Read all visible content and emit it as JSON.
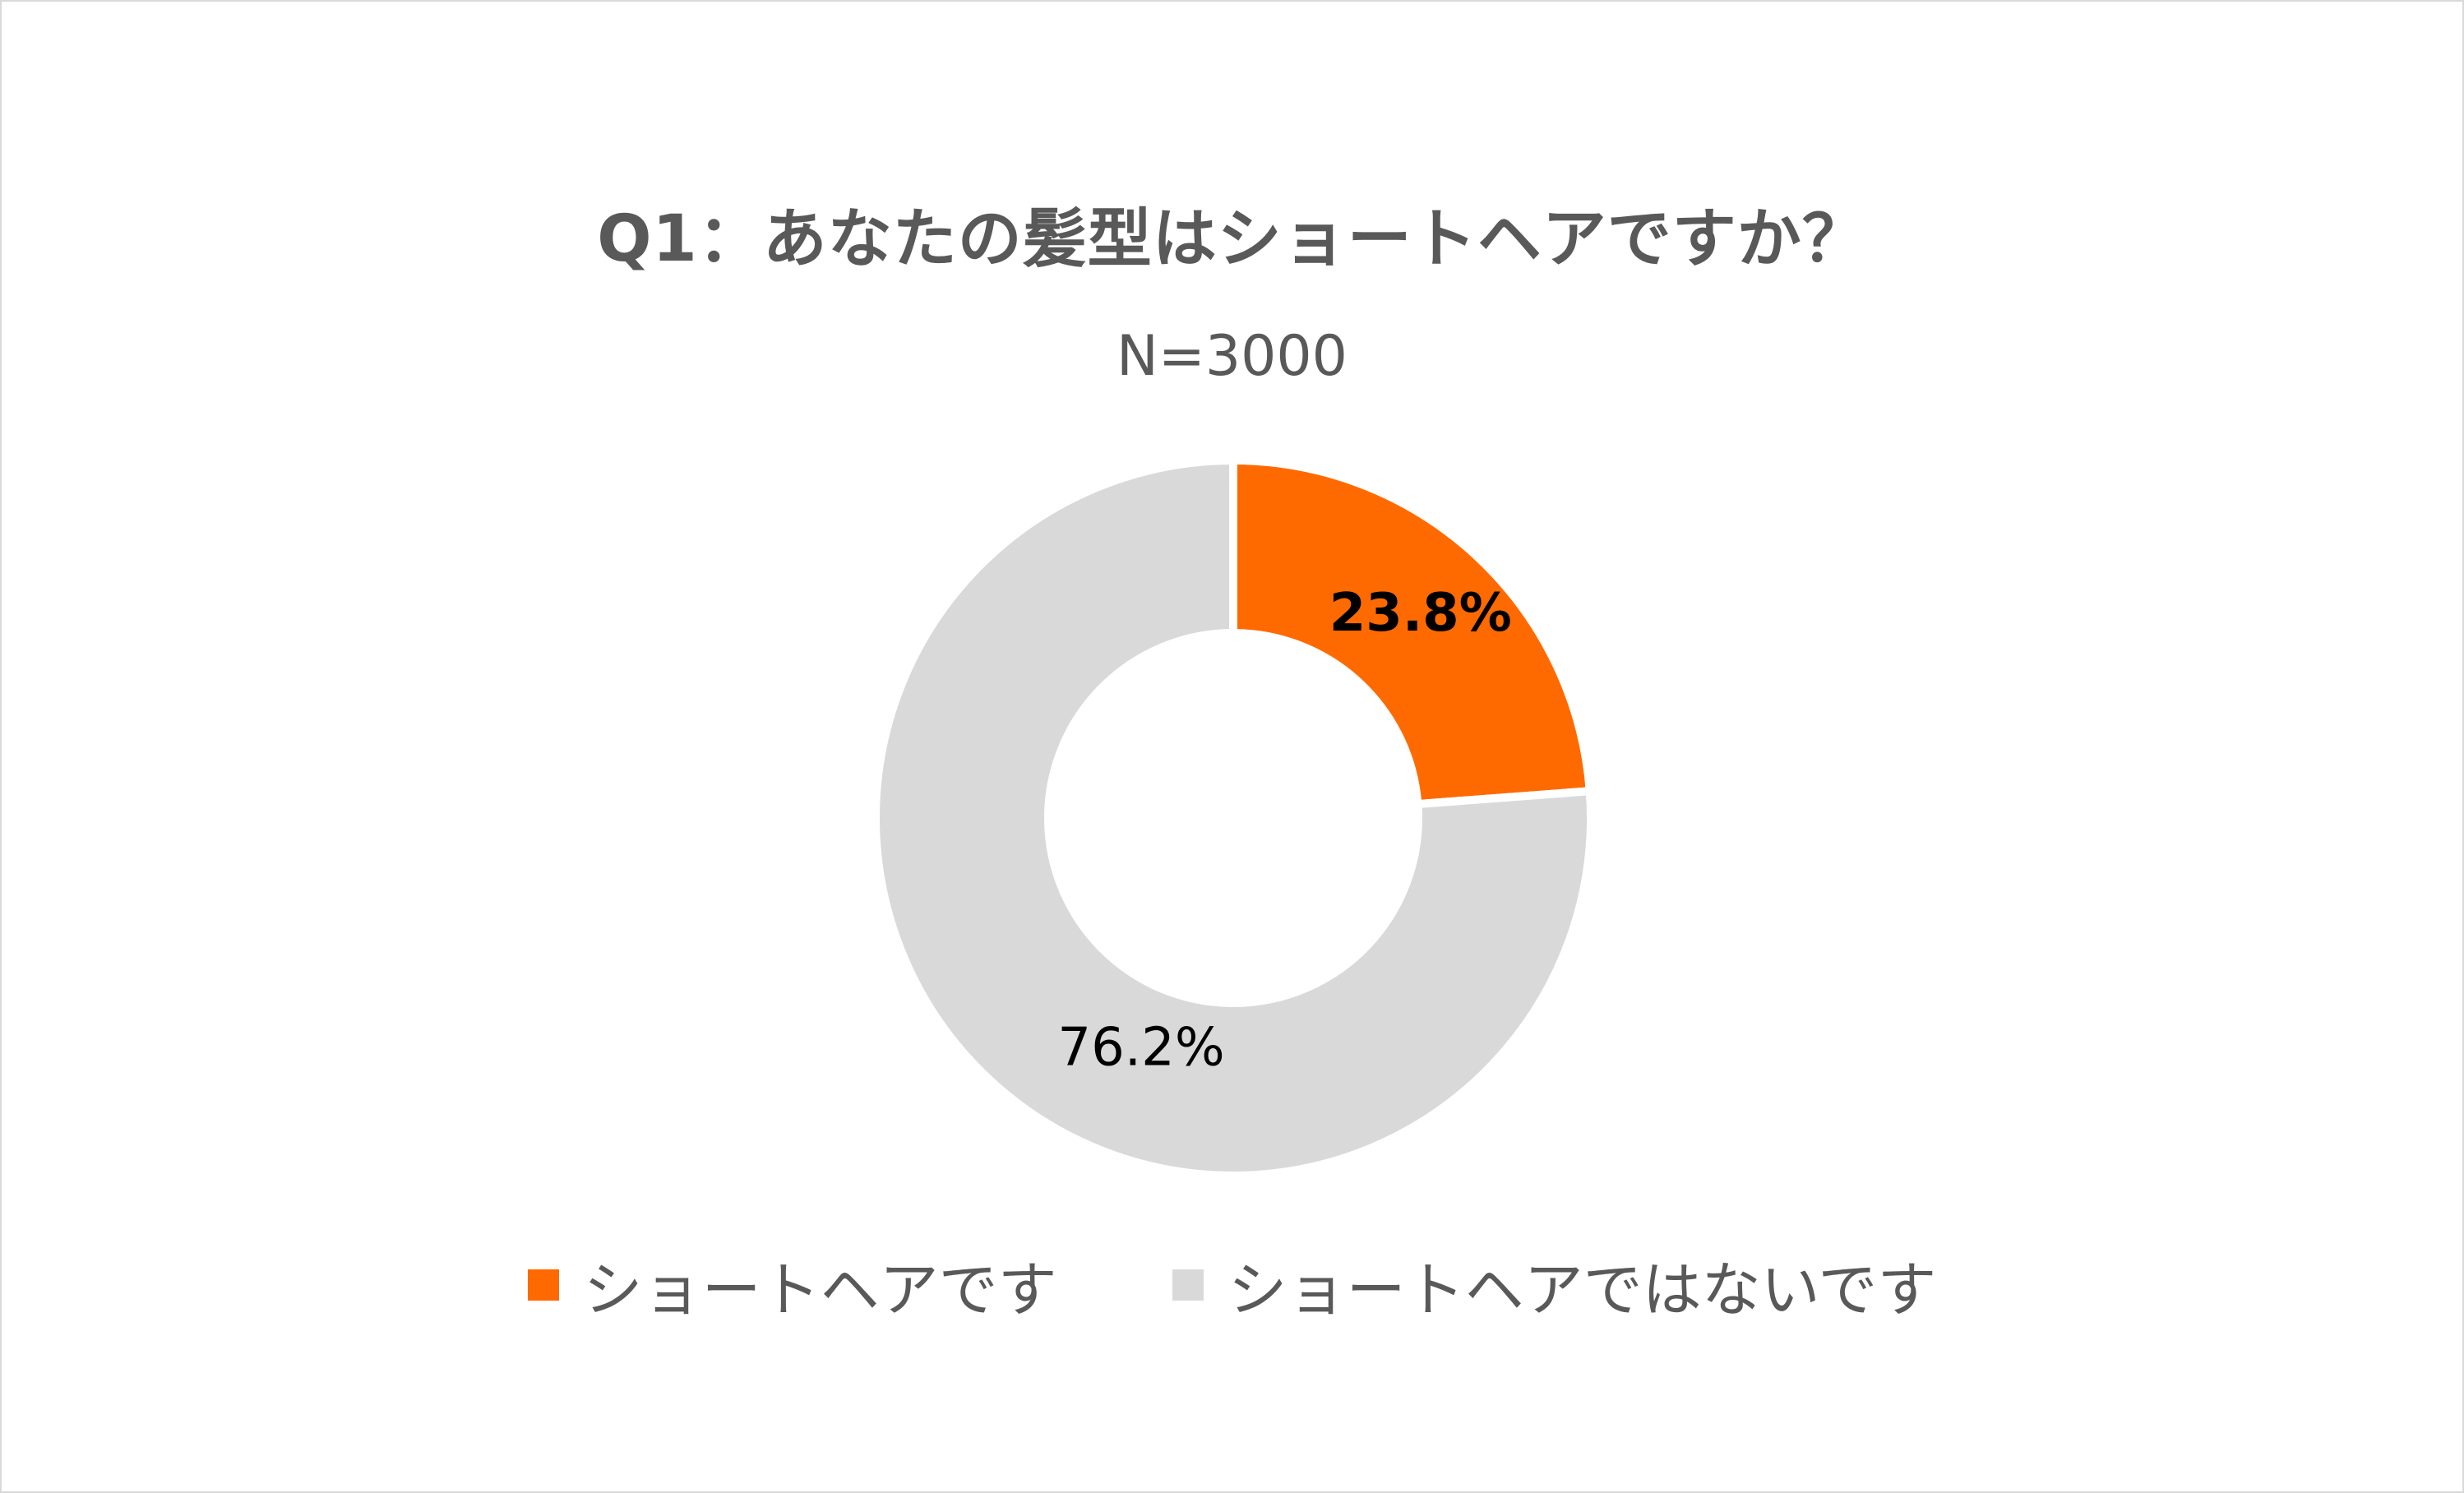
{
  "chart_data": {
    "type": "pie",
    "variant": "donut",
    "title": "Q1：あなたの髪型はショートヘアですか？",
    "subtitle": "N=3000",
    "legend_position": "bottom",
    "categories": [
      "ショートヘアです",
      "ショートヘアではないです"
    ],
    "values": [
      23.8,
      76.2
    ],
    "data_labels": [
      "23.8%",
      "76.2%"
    ],
    "colors": [
      "#FF6A00",
      "#D9D9D9"
    ]
  }
}
